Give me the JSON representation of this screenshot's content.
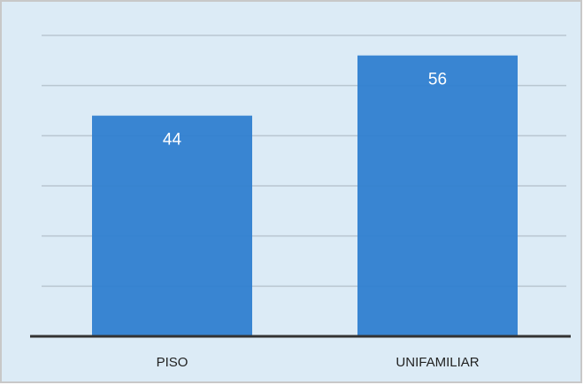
{
  "chart_data": {
    "type": "bar",
    "categories": [
      "PISO",
      "UNIFAMILIAR"
    ],
    "values": [
      44,
      56
    ],
    "color": "#2f80d0",
    "ylim": [
      0,
      60
    ],
    "yticks": [
      0,
      10,
      20,
      30,
      40,
      50,
      60
    ],
    "grid": true
  }
}
